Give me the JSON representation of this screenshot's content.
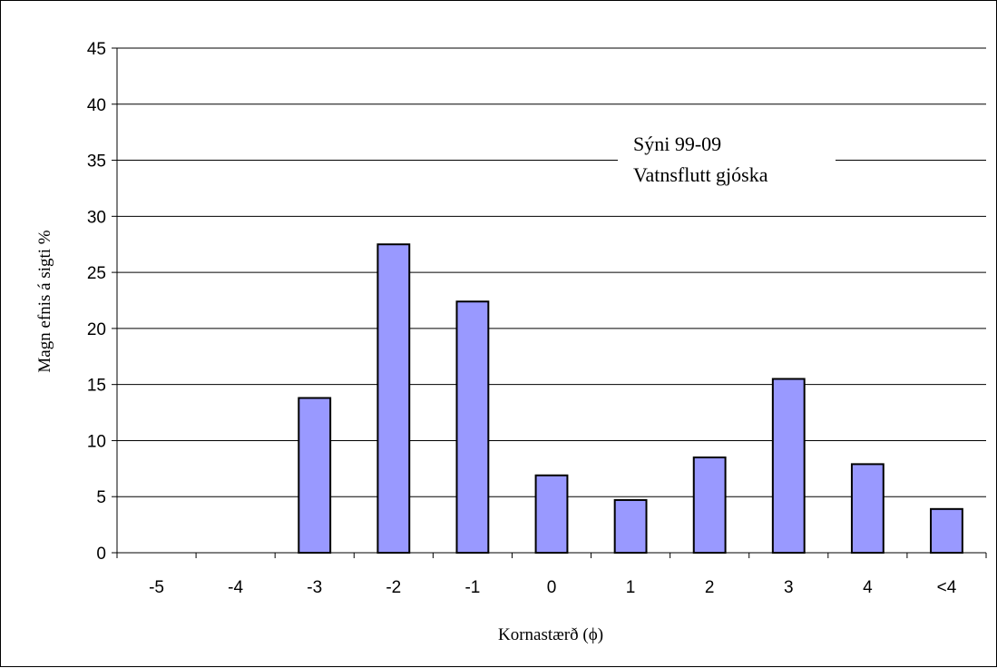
{
  "chart_data": {
    "type": "bar",
    "title": "",
    "categories": [
      "-5",
      "-4",
      "-3",
      "-2",
      "-1",
      "0",
      "1",
      "2",
      "3",
      "4",
      "<4"
    ],
    "values": [
      0,
      0,
      13.8,
      27.5,
      22.4,
      6.9,
      4.7,
      8.5,
      15.5,
      7.9,
      3.9
    ],
    "xlabel": "Kornastærð (ϕ)",
    "ylabel": "Magn efnis á sigti %",
    "ylim": [
      0,
      45
    ],
    "yticks": [
      0,
      5,
      10,
      15,
      20,
      25,
      30,
      35,
      40,
      45
    ],
    "grid": true,
    "legend": "none",
    "annotation": [
      "Sýni 99-09",
      "Vatnsflutt gjóska"
    ],
    "bar_color": "#9999ff",
    "bar_edge_color": "#000000"
  }
}
